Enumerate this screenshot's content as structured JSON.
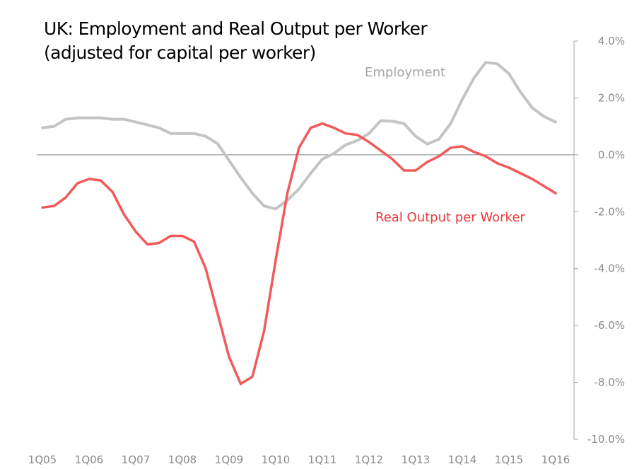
{
  "chart_data": {
    "type": "line",
    "title": "UK: Employment and Real Output per Worker",
    "subtitle": "(adjusted for capital per worker)",
    "x_tick_labels": [
      "1Q05",
      "1Q06",
      "1Q07",
      "1Q08",
      "1Q09",
      "1Q10",
      "1Q11",
      "1Q12",
      "1Q13",
      "1Q14",
      "1Q15",
      "1Q16"
    ],
    "y_tick_labels": [
      "4.0%",
      "2.0%",
      "0.0%",
      "-2.0%",
      "-4.0%",
      "-6.0%",
      "-8.0%",
      "-10.0%"
    ],
    "y_ticks": [
      4,
      2,
      0,
      -2,
      -4,
      -6,
      -8,
      -10
    ],
    "ylim": [
      -10,
      4
    ],
    "y_axis_side": "right",
    "grid": false,
    "x": [
      "1Q05",
      "2Q05",
      "3Q05",
      "4Q05",
      "1Q06",
      "2Q06",
      "3Q06",
      "4Q06",
      "1Q07",
      "2Q07",
      "3Q07",
      "4Q07",
      "1Q08",
      "2Q08",
      "3Q08",
      "4Q08",
      "1Q09",
      "2Q09",
      "3Q09",
      "4Q09",
      "1Q10",
      "2Q10",
      "3Q10",
      "4Q10",
      "1Q11",
      "2Q11",
      "3Q11",
      "4Q11",
      "1Q12",
      "2Q12",
      "3Q12",
      "4Q12",
      "1Q13",
      "2Q13",
      "3Q13",
      "4Q13",
      "1Q14",
      "2Q14",
      "3Q14",
      "4Q14",
      "1Q15",
      "2Q15",
      "3Q15",
      "4Q15",
      "1Q16"
    ],
    "series": [
      {
        "name": "Employment",
        "color": "#c4c4c4",
        "values": [
          0.95,
          1.0,
          1.25,
          1.3,
          1.3,
          1.3,
          1.25,
          1.25,
          1.15,
          1.05,
          0.95,
          0.75,
          0.75,
          0.75,
          0.65,
          0.4,
          -0.2,
          -0.8,
          -1.35,
          -1.8,
          -1.9,
          -1.6,
          -1.2,
          -0.65,
          -0.15,
          0.05,
          0.35,
          0.5,
          0.75,
          1.2,
          1.18,
          1.1,
          0.65,
          0.38,
          0.55,
          1.1,
          1.95,
          2.7,
          3.25,
          3.2,
          2.85,
          2.2,
          1.65,
          1.35,
          1.15
        ]
      },
      {
        "name": "Real Output per Worker",
        "color": "#f25a5a",
        "values": [
          -1.85,
          -1.8,
          -1.5,
          -1.0,
          -0.85,
          -0.9,
          -1.3,
          -2.1,
          -2.7,
          -3.15,
          -3.1,
          -2.85,
          -2.85,
          -3.05,
          -4.0,
          -5.55,
          -7.1,
          -8.05,
          -7.8,
          -6.2,
          -3.7,
          -1.35,
          0.25,
          0.95,
          1.1,
          0.95,
          0.75,
          0.7,
          0.45,
          0.15,
          -0.15,
          -0.55,
          -0.55,
          -0.25,
          -0.05,
          0.25,
          0.3,
          0.1,
          -0.05,
          -0.3,
          -0.45,
          -0.65,
          -0.85,
          -1.1,
          -1.35
        ]
      }
    ]
  }
}
